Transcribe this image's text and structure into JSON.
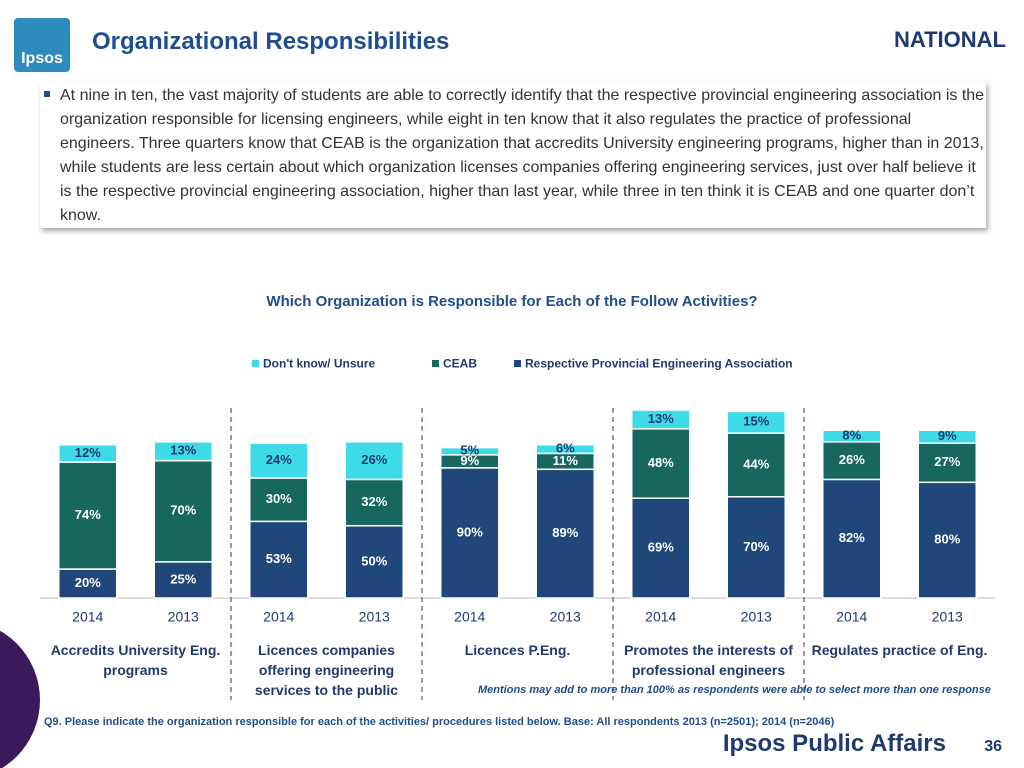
{
  "header": {
    "logo": "Ipsos",
    "title": "Organizational Responsibilities",
    "region": "NATIONAL"
  },
  "bullet": "At nine in ten, the vast majority of students are able to correctly identify that the respective provincial engineering association is the organization responsible for licensing engineers, while eight in ten know that it also regulates the practice of professional engineers.  Three quarters know that CEAB is the organization that accredits University engineering programs, higher than in 2013, while students are less certain about which organization licenses companies offering engineering services, just over half believe it is the respective provincial engineering association, higher than last year, while three in ten think it is CEAB and one quarter don’t know.",
  "chart_data": {
    "type": "stacked_bar",
    "title": "Which Organization is Responsible for Each of the Follow Activities?",
    "categories": [
      "2014",
      "2013",
      "2014",
      "2013",
      "2014",
      "2013",
      "2014",
      "2013",
      "2014",
      "2013"
    ],
    "groups": [
      "Accredits University Eng. programs",
      "Licences companies offering engineering services to the public",
      "Licences P.Eng.",
      "Promotes the interests of professional engineers",
      "Regulates practice of Eng."
    ],
    "series": [
      {
        "name": "Respective Provincial Engineering Association",
        "color": "#1f477a",
        "values": [
          20,
          25,
          53,
          50,
          90,
          89,
          69,
          70,
          82,
          80
        ],
        "value_labels": [
          "20%",
          "25%",
          "53%",
          "50%",
          "90%",
          "89%",
          "69%",
          "70%",
          "82%",
          "80%"
        ]
      },
      {
        "name": "CEAB",
        "color": "#17675e",
        "values": [
          74,
          70,
          30,
          32,
          9,
          11,
          48,
          44,
          26,
          27
        ],
        "value_labels": [
          "74%",
          "70%",
          "30%",
          "32%",
          "9%",
          "11%",
          "48%",
          "44%",
          "26%",
          "27%"
        ]
      },
      {
        "name": "Don't know/ Unsure",
        "color": "#3ddbe8",
        "values": [
          12,
          13,
          24,
          26,
          5,
          6,
          13,
          15,
          8,
          9
        ],
        "value_labels": [
          "12%",
          "13%",
          "24%",
          "26%",
          "5%",
          "6%",
          "13%",
          "15%",
          "8%",
          "9%"
        ]
      }
    ]
  },
  "note": "Mentions may add to more than 100% as respondents were able to select more than one response",
  "footnote": "Q9. Please indicate the organization responsible for each of the activities/ procedures listed below. Base:  All  respondents  2013 (n=2501); 2014 (n=2046)",
  "footer": {
    "brand": "Ipsos Public Affairs",
    "page": "36"
  }
}
